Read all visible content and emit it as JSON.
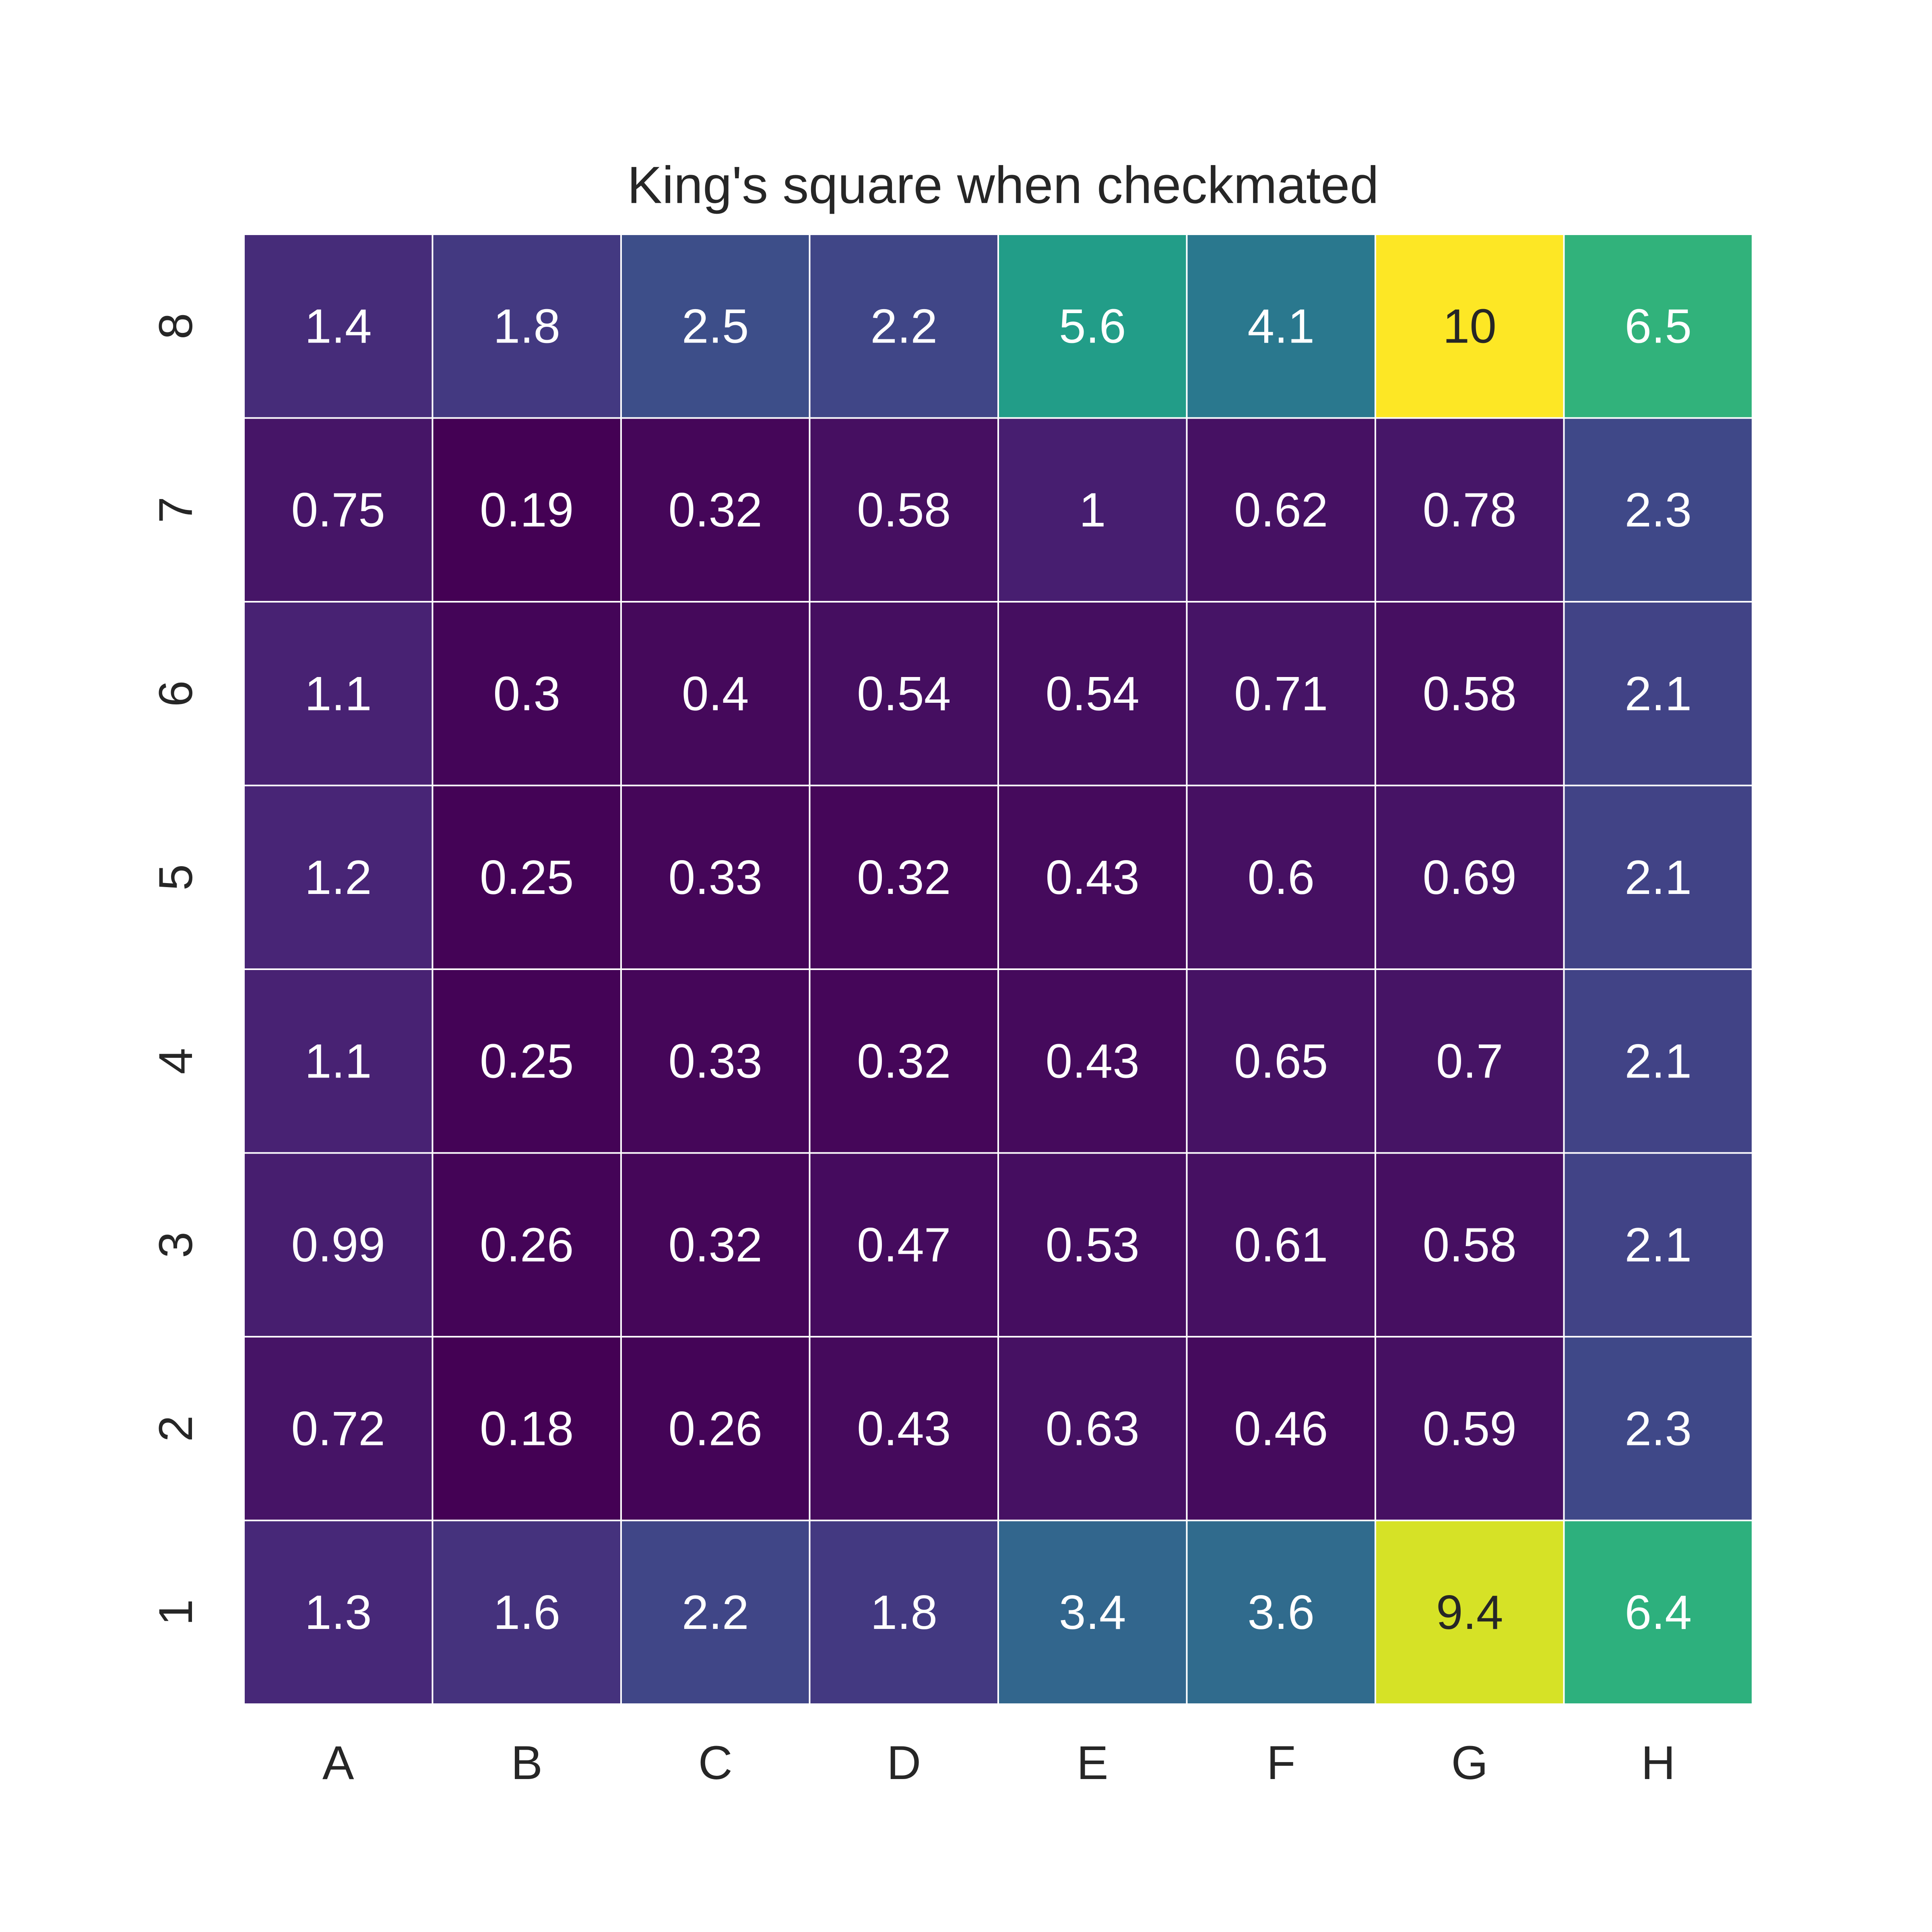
{
  "chart_data": {
    "type": "heatmap",
    "title": "King's square when checkmated",
    "xlabel": "",
    "ylabel": "",
    "x_categories": [
      "A",
      "B",
      "C",
      "D",
      "E",
      "F",
      "G",
      "H"
    ],
    "y_categories": [
      "8",
      "7",
      "6",
      "5",
      "4",
      "3",
      "2",
      "1"
    ],
    "values": [
      [
        1.4,
        1.8,
        2.5,
        2.2,
        5.6,
        4.1,
        10,
        6.5
      ],
      [
        0.75,
        0.19,
        0.32,
        0.58,
        1,
        0.62,
        0.78,
        2.3
      ],
      [
        1.1,
        0.3,
        0.4,
        0.54,
        0.54,
        0.71,
        0.58,
        2.1
      ],
      [
        1.2,
        0.25,
        0.33,
        0.32,
        0.43,
        0.6,
        0.69,
        2.1
      ],
      [
        1.1,
        0.25,
        0.33,
        0.32,
        0.43,
        0.65,
        0.7,
        2.1
      ],
      [
        0.99,
        0.26,
        0.32,
        0.47,
        0.53,
        0.61,
        0.58,
        2.1
      ],
      [
        0.72,
        0.18,
        0.26,
        0.43,
        0.63,
        0.46,
        0.59,
        2.3
      ],
      [
        1.3,
        1.6,
        2.2,
        1.8,
        3.4,
        3.6,
        9.4,
        6.4
      ]
    ],
    "colormap": "viridis",
    "color_range": [
      0.18,
      10
    ],
    "annotated": true,
    "grid_line_color": "#ffffff",
    "annotation_text_dark": "#262626",
    "annotation_text_light": "#ffffff",
    "legend": false,
    "colorbar": false
  }
}
